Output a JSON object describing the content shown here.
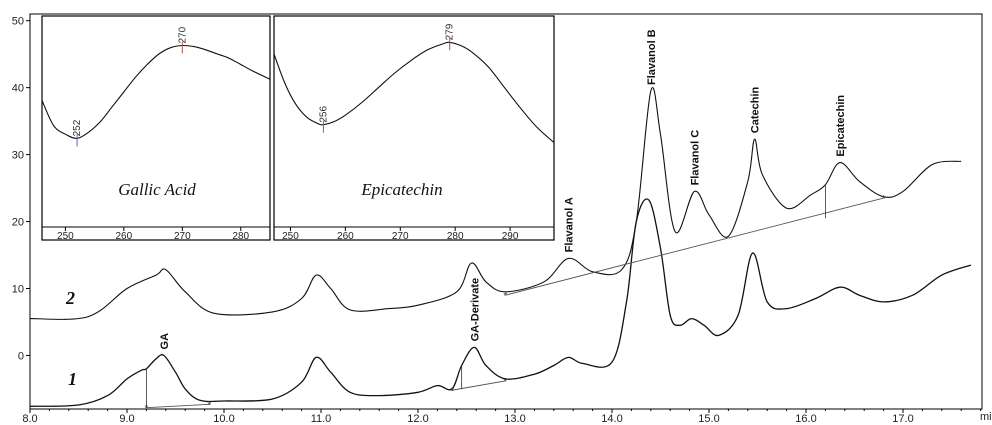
{
  "chart_data": [
    {
      "type": "line",
      "xlabel": "min",
      "xlim": [
        8.0,
        18.0
      ],
      "ylim": [
        -8,
        51
      ],
      "x_ticks": [
        "8.0",
        "9.0",
        "10.0",
        "11.0",
        "12.0",
        "13.0",
        "14.0",
        "15.0",
        "16.0",
        "17.0"
      ],
      "y_ticks": [
        "0",
        "10",
        "20",
        "30",
        "40",
        "50"
      ],
      "series": [
        {
          "name": "1",
          "x": [
            8.0,
            8.5,
            8.8,
            9.0,
            9.15,
            9.2,
            9.3,
            9.38,
            9.5,
            9.6,
            9.75,
            10.0,
            10.5,
            10.8,
            10.95,
            11.1,
            11.3,
            11.6,
            12.0,
            12.2,
            12.35,
            12.45,
            12.58,
            12.7,
            12.9,
            13.2,
            13.4,
            13.55,
            13.7,
            14.0,
            14.15,
            14.25,
            14.38,
            14.5,
            14.6,
            14.7,
            14.82,
            14.95,
            15.1,
            15.3,
            15.45,
            15.6,
            15.8,
            16.1,
            16.35,
            16.55,
            16.8,
            17.1,
            17.4,
            17.7,
            18.0
          ],
          "values": [
            -7.6,
            -7.4,
            -6.0,
            -3.5,
            -2.2,
            -2.0,
            -0.5,
            0.0,
            -2.5,
            -5.0,
            -6.7,
            -6.8,
            -6.5,
            -4.0,
            -0.3,
            -2.5,
            -5.5,
            -6.0,
            -5.5,
            -4.5,
            -5.0,
            -1.5,
            1.2,
            -1.5,
            -3.5,
            -2.8,
            -1.5,
            -0.3,
            -1.2,
            -1.0,
            8.0,
            20.0,
            23.2,
            16.0,
            6.0,
            4.5,
            5.5,
            4.5,
            3.0,
            6.0,
            15.3,
            8.0,
            7.0,
            8.5,
            10.2,
            9.0,
            8.0,
            9.0,
            12.0,
            13.5,
            14.0
          ]
        },
        {
          "name": "2",
          "x": [
            8.0,
            8.6,
            9.0,
            9.3,
            9.4,
            9.6,
            9.9,
            10.5,
            10.8,
            10.95,
            11.1,
            11.3,
            11.7,
            12.0,
            12.4,
            12.55,
            12.7,
            12.9,
            13.3,
            13.55,
            13.8,
            14.1,
            14.25,
            14.4,
            14.5,
            14.65,
            14.85,
            15.0,
            15.2,
            15.4,
            15.47,
            15.55,
            15.8,
            16.05,
            16.2,
            16.35,
            16.55,
            16.8,
            17.0,
            17.3,
            17.6,
            18.0
          ],
          "values": [
            5.5,
            5.8,
            10.0,
            12.0,
            12.8,
            9.5,
            6.3,
            6.5,
            8.5,
            12.0,
            10.0,
            6.8,
            7.0,
            7.5,
            9.5,
            13.8,
            11.0,
            9.5,
            11.0,
            14.5,
            12.5,
            12.8,
            20.0,
            39.5,
            33.0,
            18.5,
            24.5,
            21.0,
            17.8,
            26.0,
            32.3,
            27.0,
            22.0,
            24.0,
            25.5,
            28.8,
            26.0,
            23.7,
            24.5,
            28.5,
            29.0,
            29.5
          ]
        }
      ],
      "trace_labels": [
        "1",
        "2"
      ],
      "peak_labels": [
        "GA",
        "GA-Derivate",
        "Flavanol A",
        "Flavanol B",
        "Flavanol C",
        "Catechin",
        "Epicatechin"
      ],
      "peak_positions": [
        {
          "x": 9.38,
          "y": 0.0
        },
        {
          "x": 12.58,
          "y": 1.2
        },
        {
          "x": 13.55,
          "y": 14.5
        },
        {
          "x": 14.4,
          "y": 39.5
        },
        {
          "x": 14.85,
          "y": 24.5
        },
        {
          "x": 15.47,
          "y": 32.3
        },
        {
          "x": 16.35,
          "y": 28.8
        }
      ],
      "grid": false
    },
    {
      "type": "line",
      "title": "Gallic Acid",
      "x_ticks": [
        "250",
        "260",
        "270",
        "280"
      ],
      "xlim": [
        246,
        285
      ],
      "ylim": [
        0,
        1
      ],
      "series": [
        {
          "x": [
            246,
            248,
            250,
            252,
            254,
            256,
            258,
            260,
            262,
            264,
            266,
            268,
            270,
            272,
            274,
            276,
            278,
            280,
            282,
            285
          ],
          "values": [
            0.6,
            0.48,
            0.44,
            0.42,
            0.45,
            0.5,
            0.57,
            0.64,
            0.71,
            0.77,
            0.82,
            0.85,
            0.86,
            0.855,
            0.84,
            0.82,
            0.8,
            0.77,
            0.74,
            0.7
          ]
        }
      ],
      "markers": [
        "252",
        "270"
      ]
    },
    {
      "type": "line",
      "title": "Epicatechin",
      "x_ticks": [
        "250",
        "260",
        "270",
        "280",
        "290"
      ],
      "xlim": [
        247,
        298
      ],
      "ylim": [
        0,
        1
      ],
      "series": [
        {
          "x": [
            247,
            249,
            251,
            253,
            255,
            256,
            258,
            260,
            263,
            266,
            269,
            272,
            275,
            278,
            279,
            281,
            283,
            286,
            289,
            292,
            295,
            298
          ],
          "values": [
            0.82,
            0.68,
            0.58,
            0.52,
            0.49,
            0.485,
            0.5,
            0.53,
            0.59,
            0.66,
            0.73,
            0.79,
            0.84,
            0.87,
            0.875,
            0.86,
            0.83,
            0.76,
            0.66,
            0.56,
            0.47,
            0.4
          ]
        }
      ],
      "markers": [
        "256",
        "279"
      ]
    }
  ]
}
